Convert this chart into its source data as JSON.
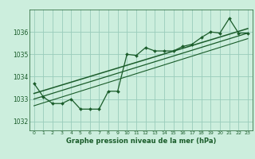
{
  "title": "Graphe pression niveau de la mer (hPa)",
  "bg_color": "#cceedd",
  "grid_color": "#99ccbb",
  "line_color": "#1a5c2a",
  "text_color": "#1a5c2a",
  "xlim": [
    -0.5,
    23.5
  ],
  "ylim": [
    1031.6,
    1037.0
  ],
  "yticks": [
    1032,
    1033,
    1034,
    1035,
    1036
  ],
  "xticks": [
    0,
    1,
    2,
    3,
    4,
    5,
    6,
    7,
    8,
    9,
    10,
    11,
    12,
    13,
    14,
    15,
    16,
    17,
    18,
    19,
    20,
    21,
    22,
    23
  ],
  "data_main": [
    1033.7,
    1033.1,
    1032.8,
    1032.8,
    1033.0,
    1032.55,
    1032.55,
    1032.55,
    1033.35,
    1033.35,
    1035.0,
    1034.95,
    1035.3,
    1035.15,
    1035.15,
    1035.15,
    1035.35,
    1035.45,
    1035.75,
    1036.0,
    1035.95,
    1036.6,
    1035.95,
    1035.95
  ],
  "trend1": [
    1033.25,
    1036.15
  ],
  "trend2": [
    1033.0,
    1035.95
  ],
  "trend3": [
    1032.7,
    1035.7
  ]
}
